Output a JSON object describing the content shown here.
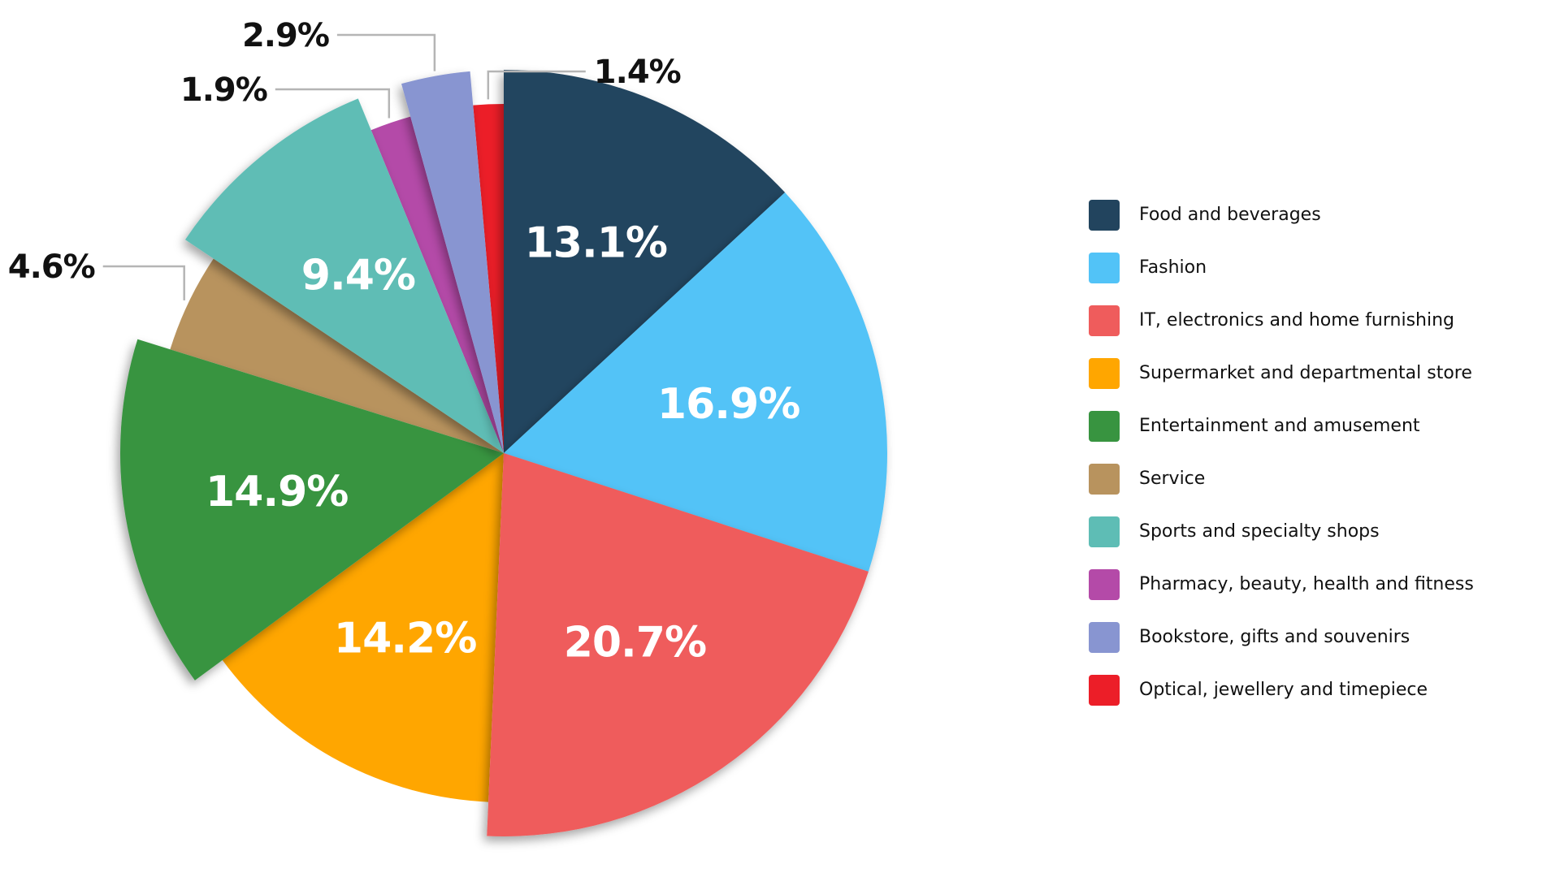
{
  "chart_data": {
    "type": "pie",
    "title": "",
    "start_angle_deg": 0,
    "direction": "clockwise",
    "legend_position": "right",
    "slices": [
      {
        "label": "Food and beverages",
        "value": 13.1,
        "value_label": "13.1%",
        "color": "#22445e",
        "exploded": true
      },
      {
        "label": "Fashion",
        "value": 16.9,
        "value_label": "16.9%",
        "color": "#52c3f7",
        "exploded": true
      },
      {
        "label": "IT, electronics and home furnishing",
        "value": 20.7,
        "value_label": "20.7%",
        "color": "#ef5c5c",
        "exploded": true
      },
      {
        "label": "Supermarket and departmental store",
        "value": 14.2,
        "value_label": "14.2%",
        "color": "#ffa600",
        "exploded": false
      },
      {
        "label": "Entertainment and amusement",
        "value": 14.9,
        "value_label": "14.9%",
        "color": "#389440",
        "exploded": true
      },
      {
        "label": "Service",
        "value": 4.6,
        "value_label": "4.6%",
        "color": "#b8935e",
        "exploded": false
      },
      {
        "label": "Sports and specialty shops",
        "value": 9.4,
        "value_label": "9.4%",
        "color": "#5ebdb5",
        "exploded": true
      },
      {
        "label": "Pharmacy, beauty, health and fitness",
        "value": 1.9,
        "value_label": "1.9%",
        "color": "#b44aa8",
        "exploded": false
      },
      {
        "label": "Bookstore, gifts and souvenirs",
        "value": 2.9,
        "value_label": "2.9%",
        "color": "#8895d1",
        "exploded": true
      },
      {
        "label": "Optical, jewellery and timepiece",
        "value": 1.4,
        "value_label": "1.4%",
        "color": "#ec1e28",
        "exploded": false
      }
    ]
  }
}
